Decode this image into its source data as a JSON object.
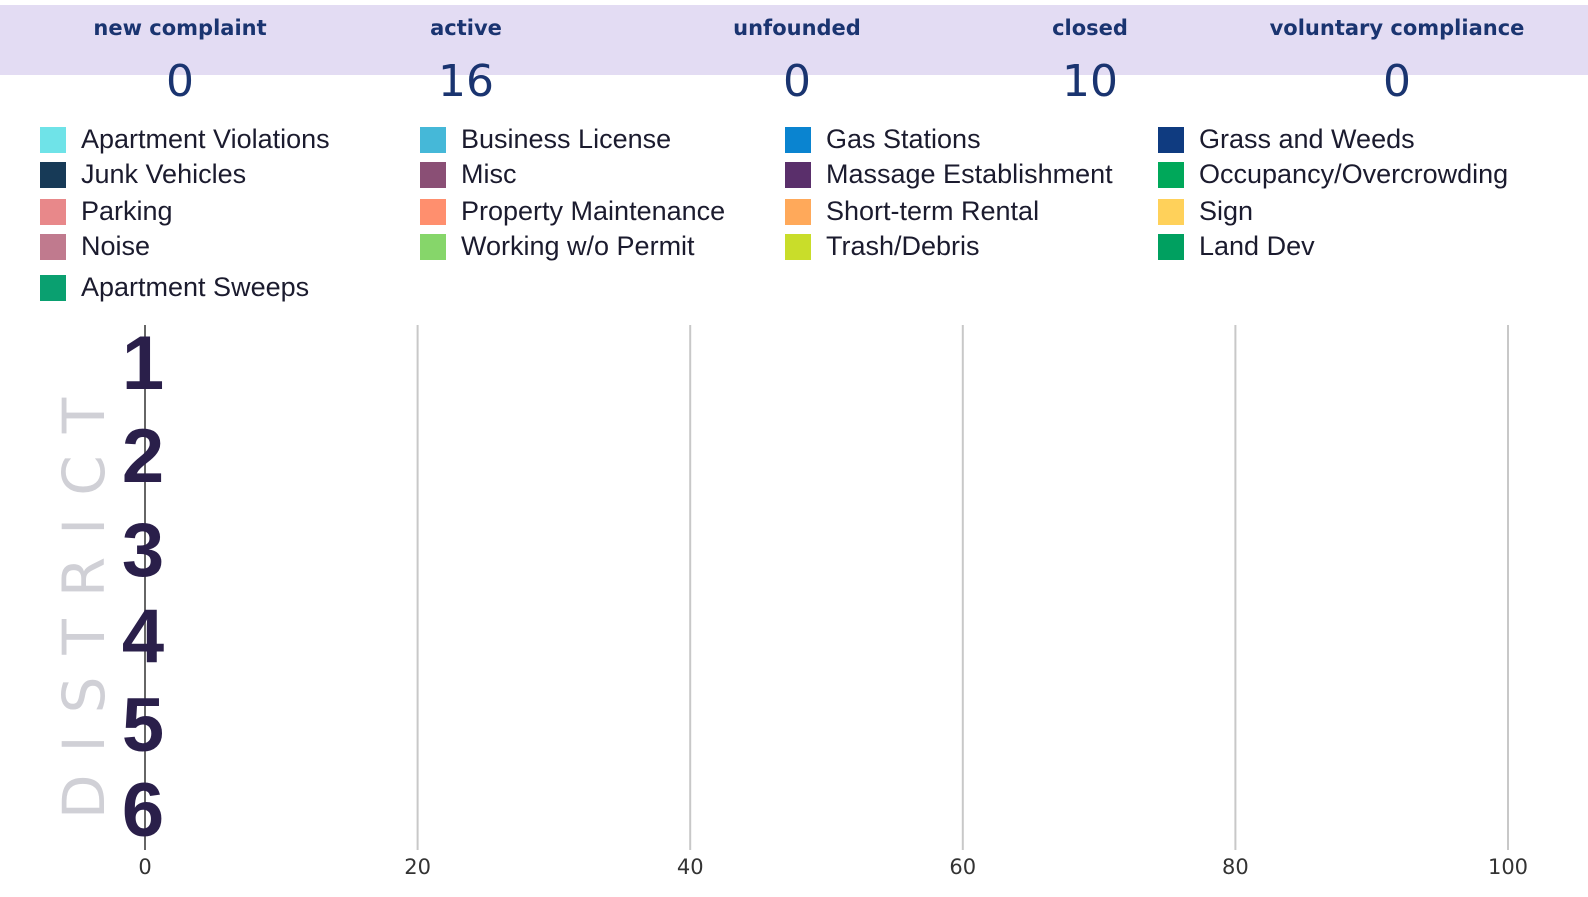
{
  "stats": [
    {
      "label": "new complaint",
      "value": 0
    },
    {
      "label": "active",
      "value": 16
    },
    {
      "label": "unfounded",
      "value": 0
    },
    {
      "label": "closed",
      "value": 10
    },
    {
      "label": "voluntary compliance",
      "value": 0
    }
  ],
  "chart_data": {
    "type": "stacked-barh",
    "ylabel": "DISTRICT",
    "categories": [
      "1",
      "2",
      "3",
      "4",
      "5",
      "6"
    ],
    "xlim": [
      0,
      100
    ],
    "xticks": [
      0,
      20,
      40,
      60,
      80,
      100
    ],
    "grid": true,
    "series": [
      {
        "name": "Apartment Violations",
        "color": "#6fe3e8",
        "values": [
          0,
          0,
          0,
          0,
          0,
          0
        ]
      },
      {
        "name": "Business License",
        "color": "#45b8d8",
        "values": [
          0,
          0,
          0,
          0,
          0,
          0
        ]
      },
      {
        "name": "Gas Stations",
        "color": "#0a84d0",
        "values": [
          0,
          0,
          0,
          0,
          0,
          0
        ]
      },
      {
        "name": "Grass and Weeds",
        "color": "#0f3b80",
        "values": [
          0,
          0,
          0,
          0,
          0,
          0
        ]
      },
      {
        "name": "Junk Vehicles",
        "color": "#173a57",
        "values": [
          0,
          0,
          0,
          0,
          0,
          0
        ]
      },
      {
        "name": "Misc",
        "color": "#8a4f75",
        "values": [
          0,
          0,
          0,
          0,
          0,
          0
        ]
      },
      {
        "name": "Massage Establishment",
        "color": "#5a2f6b",
        "values": [
          0,
          0,
          0,
          0,
          0,
          0
        ]
      },
      {
        "name": "Occupancy/Overcrowding",
        "color": "#00a85a",
        "values": [
          0,
          0,
          0,
          0,
          0,
          0
        ]
      },
      {
        "name": "Parking",
        "color": "#e8888a",
        "values": [
          0,
          0,
          0,
          0,
          0,
          0
        ]
      },
      {
        "name": "Property Maintenance",
        "color": "#ff8f6e",
        "values": [
          0,
          0,
          0,
          0,
          0,
          0
        ]
      },
      {
        "name": "Short-term Rental",
        "color": "#ffa95a",
        "values": [
          0,
          0,
          0,
          0,
          0,
          0
        ]
      },
      {
        "name": "Sign",
        "color": "#ffd15a",
        "values": [
          0,
          0,
          0,
          0,
          0,
          0
        ]
      },
      {
        "name": "Noise",
        "color": "#c07a8e",
        "values": [
          0,
          0,
          0,
          0,
          0,
          0
        ]
      },
      {
        "name": "Working w/o Permit",
        "color": "#86d66a",
        "values": [
          0,
          0,
          0,
          0,
          0,
          0
        ]
      },
      {
        "name": "Trash/Debris",
        "color": "#c9dd2a",
        "values": [
          0,
          0,
          0,
          0,
          0,
          0
        ]
      },
      {
        "name": "Land Dev",
        "color": "#00a060",
        "values": [
          0,
          0,
          0,
          0,
          0,
          0
        ]
      },
      {
        "name": "Apartment Sweeps",
        "color": "#0aa070",
        "values": [
          0,
          0,
          0,
          0,
          0,
          0
        ]
      }
    ]
  }
}
